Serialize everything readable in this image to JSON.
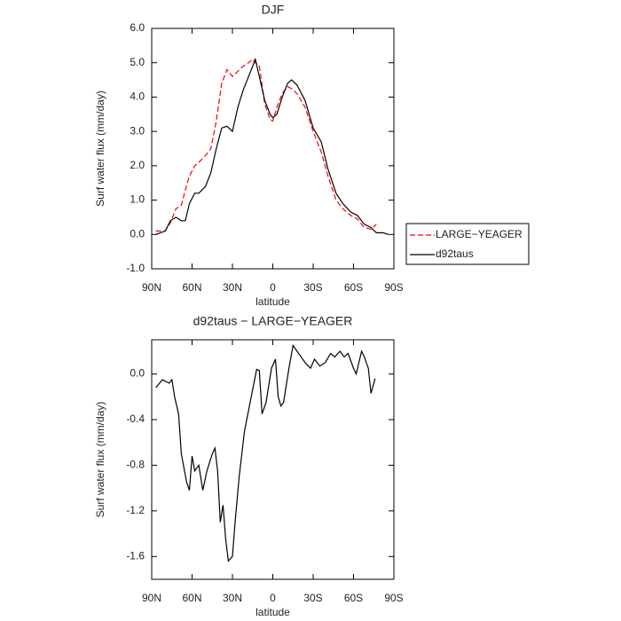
{
  "chart_data": [
    {
      "type": "line",
      "title": "DJF",
      "xlabel": "latitude",
      "ylabel": "Surf water flux (mm/day)",
      "x": [
        -87,
        -80,
        -76,
        -72,
        -68,
        -65,
        -62,
        -58,
        -55,
        -50,
        -46,
        -42,
        -38,
        -34,
        -30,
        -26,
        -22,
        -18,
        -15,
        -13,
        -10,
        -6,
        -2,
        0,
        3,
        7,
        11,
        14,
        18,
        24,
        30,
        36,
        41,
        47,
        52,
        58,
        63,
        68,
        73,
        77,
        82,
        86
      ],
      "series": [
        {
          "name": "LARGE−YEAGER",
          "color": "#ff0000",
          "dash": true,
          "values": [
            0.1,
            0.1,
            0.35,
            0.75,
            0.85,
            1.3,
            1.7,
            2.0,
            2.1,
            2.3,
            2.5,
            3.3,
            4.4,
            4.8,
            4.6,
            4.75,
            4.9,
            5.0,
            5.1,
            5.0,
            4.9,
            3.8,
            3.35,
            3.3,
            3.7,
            4.1,
            4.3,
            4.25,
            4.1,
            3.7,
            3.0,
            2.4,
            1.7,
            1.0,
            0.75,
            0.55,
            0.45,
            0.2,
            0.15,
            0.3,
            null,
            null
          ]
        },
        {
          "name": "d92taus",
          "color": "#000000",
          "dash": false,
          "values": [
            0,
            0.1,
            0.4,
            0.5,
            0.4,
            0.4,
            0.9,
            1.2,
            1.2,
            1.4,
            1.8,
            2.5,
            3.1,
            3.15,
            3.0,
            3.7,
            4.2,
            4.6,
            4.9,
            5.1,
            4.6,
            3.9,
            3.5,
            3.4,
            3.5,
            4.0,
            4.4,
            4.5,
            4.35,
            3.9,
            3.1,
            2.7,
            1.9,
            1.2,
            0.9,
            0.65,
            0.55,
            0.3,
            0.2,
            0.05,
            0.05,
            0
          ]
        }
      ],
      "xlim": [
        -90,
        90
      ],
      "xticks": [
        {
          "value": -90,
          "label": "90N"
        },
        {
          "value": -60,
          "label": "60N"
        },
        {
          "value": -30,
          "label": "30N"
        },
        0,
        {
          "value": 30,
          "label": "30S"
        },
        {
          "value": 60,
          "label": "60S"
        },
        {
          "value": 90,
          "label": "90S"
        }
      ],
      "ylim": [
        -1,
        6
      ],
      "yticks": [
        {
          "value": -1,
          "label": "-1.0"
        },
        {
          "value": 0,
          "label": "0.0"
        },
        {
          "value": 1,
          "label": "1.0"
        },
        {
          "value": 2,
          "label": "2.0"
        },
        {
          "value": 3,
          "label": "3.0"
        },
        {
          "value": 4,
          "label": "4.0"
        },
        {
          "value": 5,
          "label": "5.0"
        },
        {
          "value": 6,
          "label": "6.0"
        }
      ],
      "legend": "right"
    },
    {
      "type": "line",
      "title": "d92taus − LARGE−YEAGER",
      "xlabel": "latitude",
      "ylabel": "Surf water flux (mm/day)",
      "x": [
        -87,
        -82,
        -77,
        -75,
        -73,
        -70,
        -68,
        -64,
        -62,
        -60,
        -58,
        -55,
        -52,
        -49,
        -45,
        -43,
        -41,
        -39,
        -37,
        -35,
        -33,
        -30,
        -28,
        -25,
        -21,
        -16,
        -12,
        -10,
        -8,
        -5,
        -1,
        2,
        4,
        6,
        8,
        12,
        15,
        18,
        21,
        24,
        28,
        31,
        35,
        39,
        43,
        46,
        50,
        53,
        56,
        60,
        62,
        66,
        68,
        71,
        73,
        76
      ],
      "color": "#000000",
      "values": [
        -0.12,
        -0.05,
        -0.08,
        -0.05,
        -0.2,
        -0.35,
        -0.7,
        -0.95,
        -1.02,
        -0.72,
        -0.85,
        -0.8,
        -1.02,
        -0.85,
        -0.7,
        -0.65,
        -0.85,
        -1.3,
        -1.15,
        -1.45,
        -1.64,
        -1.6,
        -1.3,
        -0.9,
        -0.5,
        -0.2,
        0.04,
        0.03,
        -0.35,
        -0.25,
        0.05,
        0.13,
        -0.2,
        -0.28,
        -0.25,
        0.05,
        0.25,
        0.2,
        0.15,
        0.1,
        0.05,
        0.13,
        0.07,
        0.1,
        0.18,
        0.15,
        0.2,
        0.15,
        0.18,
        0.05,
        0.0,
        0.2,
        0.15,
        0.05,
        -0.17,
        -0.04
      ],
      "xlim": [
        -90,
        90
      ],
      "xticks": [
        {
          "value": -90,
          "label": "90N"
        },
        {
          "value": -60,
          "label": "60N"
        },
        {
          "value": -30,
          "label": "30N"
        },
        0,
        {
          "value": 30,
          "label": "30S"
        },
        {
          "value": 60,
          "label": "60S"
        },
        {
          "value": 90,
          "label": "90S"
        }
      ],
      "ylim": [
        -1.8,
        0.3
      ],
      "yticks": [
        {
          "value": -1.6,
          "label": "-1.6"
        },
        {
          "value": -1.2,
          "label": "-1.2"
        },
        {
          "value": -0.8,
          "label": "-0.8"
        },
        {
          "value": -0.4,
          "label": "-0.4"
        },
        {
          "value": 0,
          "label": "0.0"
        }
      ]
    }
  ]
}
